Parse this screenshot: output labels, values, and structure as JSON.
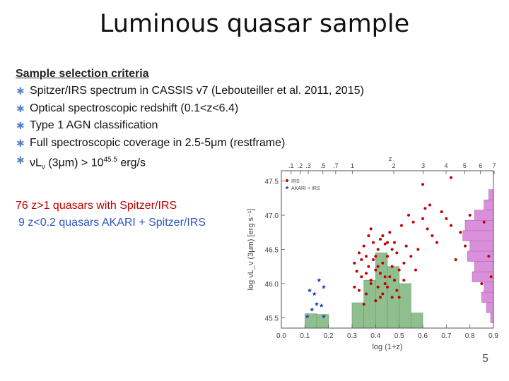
{
  "slide": {
    "title": "Luminous quasar sample",
    "page_number": "5"
  },
  "criteria": {
    "heading": "Sample selection criteria",
    "items": [
      "Spitzer/IRS spectrum in CASSIS v7 (Lebouteiller et al. 2011, 2015)",
      "Optical spectroscopic redshift (0.1<z<6.4)",
      "Type 1 AGN classification",
      "Full spectroscopic coverage in 2.5-5μm (restframe)"
    ],
    "luminosity_item": {
      "lead": "νL",
      "sub": "ν",
      "mid": " (3μm) > 10",
      "sup": "45.5",
      "tail": " erg/s"
    }
  },
  "counts": {
    "line1": "76 z>1 quasars with Spitzer/IRS",
    "line2": "9 z<0.2 quasars AKARI + Spitzer/IRS"
  },
  "chart_data": {
    "type": "scatter",
    "xlabel": "log (1+z)",
    "ylabel": "log νL_ν (3μm) [erg s⁻¹]",
    "top_axis_label": "z",
    "xlim": [
      0.0,
      0.9
    ],
    "ylim": [
      45.35,
      47.65
    ],
    "x_ticks": [
      "0.0",
      "0.1",
      "0.2",
      "0.3",
      "0.4",
      "0.5",
      "0.6",
      "0.7",
      "0.8",
      "0.9"
    ],
    "y_ticks": [
      "45.5",
      "46.0",
      "46.5",
      "47.0",
      "47.5"
    ],
    "top_ticks": [
      ".1",
      ".2",
      ".3",
      ".5",
      ".7",
      "1",
      "2",
      "3",
      "4",
      "5",
      "6",
      "7"
    ],
    "legend": {
      "placement": "top-left",
      "entries": [
        "IRS",
        "AKARI + IRS"
      ]
    },
    "colors": {
      "irs": "#c00000",
      "akari": "#1f3fbf",
      "z_hist": "#8fbf8f",
      "l_hist": "#d98fd9"
    },
    "z_histogram": {
      "bin_width": 0.05,
      "bins": [
        {
          "x": 0.1,
          "top": 45.56
        },
        {
          "x": 0.15,
          "top": 45.55
        },
        {
          "x": 0.3,
          "top": 45.72
        },
        {
          "x": 0.35,
          "top": 46.05
        },
        {
          "x": 0.4,
          "top": 46.45
        },
        {
          "x": 0.45,
          "top": 46.25
        },
        {
          "x": 0.5,
          "top": 46.0
        },
        {
          "x": 0.55,
          "top": 45.57
        }
      ]
    },
    "lum_histogram": {
      "bin_height": 0.15,
      "bins": [
        {
          "y": 45.5,
          "w": 0.012
        },
        {
          "y": 45.65,
          "w": 0.03
        },
        {
          "y": 45.8,
          "w": 0.05
        },
        {
          "y": 45.95,
          "w": 0.04
        },
        {
          "y": 46.1,
          "w": 0.09
        },
        {
          "y": 46.25,
          "w": 0.08
        },
        {
          "y": 46.4,
          "w": 0.11
        },
        {
          "y": 46.55,
          "w": 0.1
        },
        {
          "y": 46.7,
          "w": 0.13
        },
        {
          "y": 46.85,
          "w": 0.12
        },
        {
          "y": 47.0,
          "w": 0.08
        },
        {
          "y": 47.15,
          "w": 0.04
        },
        {
          "y": 47.3,
          "w": 0.02
        }
      ]
    },
    "series": [
      {
        "name": "IRS",
        "points": [
          [
            0.31,
            46.3
          ],
          [
            0.32,
            46.18
          ],
          [
            0.33,
            46.45
          ],
          [
            0.34,
            46.1
          ],
          [
            0.35,
            46.55
          ],
          [
            0.36,
            46.4
          ],
          [
            0.37,
            46.25
          ],
          [
            0.38,
            46.05
          ],
          [
            0.39,
            46.35
          ],
          [
            0.4,
            46.2
          ],
          [
            0.41,
            46.5
          ],
          [
            0.42,
            46.15
          ],
          [
            0.43,
            46.3
          ],
          [
            0.44,
            46.0
          ],
          [
            0.45,
            46.4
          ],
          [
            0.46,
            46.1
          ],
          [
            0.47,
            46.25
          ],
          [
            0.48,
            46.05
          ],
          [
            0.49,
            46.45
          ],
          [
            0.5,
            46.2
          ],
          [
            0.33,
            45.9
          ],
          [
            0.36,
            45.85
          ],
          [
            0.38,
            46.0
          ],
          [
            0.41,
            45.95
          ],
          [
            0.43,
            45.85
          ],
          [
            0.45,
            45.95
          ],
          [
            0.47,
            45.8
          ],
          [
            0.39,
            46.6
          ],
          [
            0.42,
            46.65
          ],
          [
            0.44,
            46.58
          ],
          [
            0.37,
            46.7
          ],
          [
            0.46,
            46.75
          ],
          [
            0.48,
            46.6
          ],
          [
            0.4,
            45.75
          ],
          [
            0.35,
            45.7
          ],
          [
            0.52,
            46.3
          ],
          [
            0.53,
            46.55
          ],
          [
            0.55,
            46.4
          ],
          [
            0.57,
            46.2
          ],
          [
            0.51,
            46.85
          ],
          [
            0.56,
            46.9
          ],
          [
            0.6,
            46.95
          ],
          [
            0.62,
            46.8
          ],
          [
            0.64,
            46.7
          ],
          [
            0.66,
            46.6
          ],
          [
            0.58,
            46.5
          ],
          [
            0.54,
            47.0
          ],
          [
            0.61,
            47.1
          ],
          [
            0.63,
            47.15
          ],
          [
            0.68,
            47.05
          ],
          [
            0.7,
            46.95
          ],
          [
            0.72,
            46.85
          ],
          [
            0.6,
            47.45
          ],
          [
            0.72,
            47.55
          ],
          [
            0.8,
            47.0
          ],
          [
            0.78,
            46.55
          ],
          [
            0.86,
            46.9
          ],
          [
            0.88,
            46.4
          ],
          [
            0.89,
            46.1
          ],
          [
            0.85,
            46.0
          ],
          [
            0.74,
            46.35
          ],
          [
            0.76,
            46.75
          ],
          [
            0.5,
            45.8
          ],
          [
            0.42,
            45.8
          ],
          [
            0.44,
            46.1
          ],
          [
            0.31,
            45.95
          ],
          [
            0.34,
            46.35
          ],
          [
            0.45,
            46.6
          ],
          [
            0.38,
            46.8
          ],
          [
            0.52,
            46.05
          ],
          [
            0.49,
            45.9
          ],
          [
            0.47,
            46.5
          ],
          [
            0.36,
            46.15
          ],
          [
            0.4,
            46.4
          ],
          [
            0.43,
            46.7
          ],
          [
            0.41,
            46.25
          ]
        ]
      },
      {
        "name": "AKARI + IRS",
        "points": [
          [
            0.12,
            45.9
          ],
          [
            0.14,
            45.85
          ],
          [
            0.16,
            46.05
          ],
          [
            0.18,
            45.95
          ],
          [
            0.15,
            45.7
          ],
          [
            0.17,
            45.68
          ],
          [
            0.13,
            45.62
          ],
          [
            0.11,
            45.52
          ],
          [
            0.18,
            45.52
          ]
        ]
      }
    ]
  }
}
